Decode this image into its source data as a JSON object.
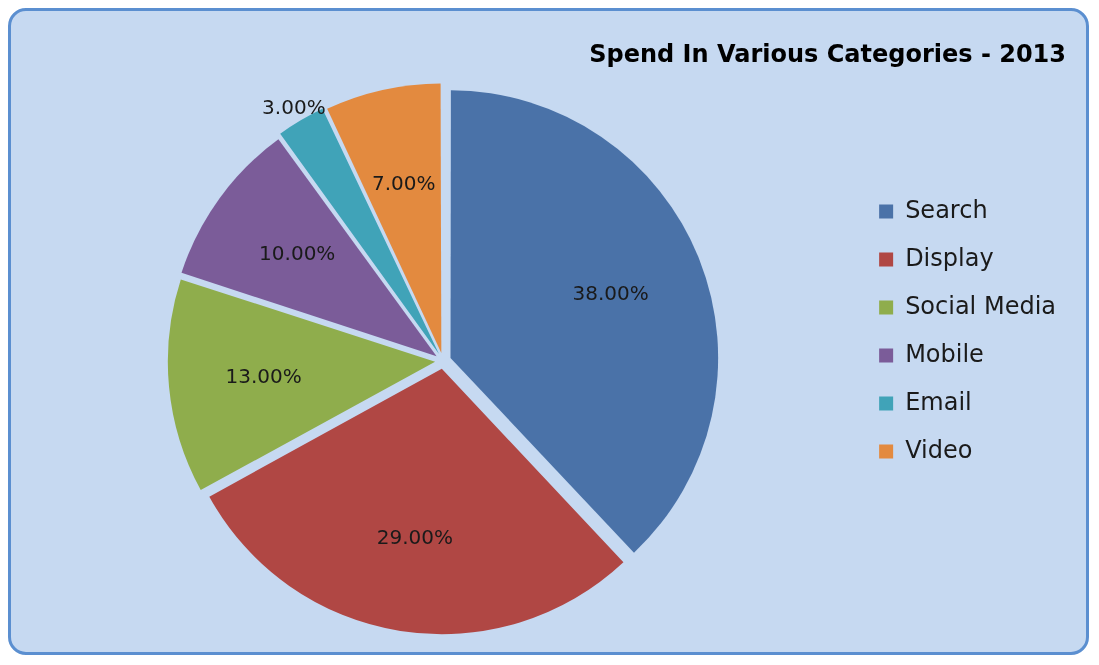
{
  "chart_data": {
    "type": "pie",
    "title": "Spend In Various Categories - 2013",
    "categories": [
      "Search",
      "Display",
      "Social Media",
      "Mobile",
      "Email",
      "Video"
    ],
    "values": [
      38,
      29,
      13,
      10,
      3,
      7
    ],
    "colors": [
      "#4a72a8",
      "#b04744",
      "#8fad4c",
      "#7b5c99",
      "#40a3b8",
      "#e38a3f"
    ],
    "value_labels": [
      "38.00%",
      "29.00%",
      "13.00%",
      "10.00%",
      "3.00%",
      "7.00%"
    ],
    "legend": "right"
  }
}
